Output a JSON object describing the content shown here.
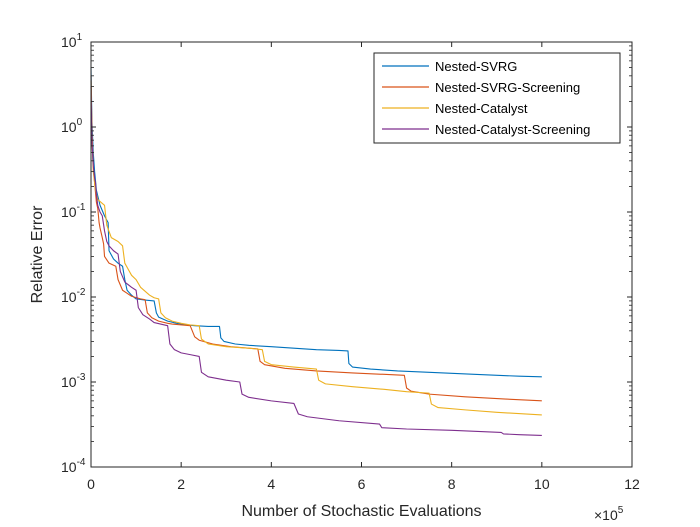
{
  "chart_data": {
    "type": "line",
    "xlabel": "Number of Stochastic Evaluations",
    "ylabel": "Relative Error",
    "x_multiplier_label": "×10",
    "x_multiplier_exponent": "5",
    "xlim": [
      0,
      12
    ],
    "ylim": [
      0.0001,
      10
    ],
    "yscale": "log",
    "xticks": [
      0,
      2,
      4,
      6,
      8,
      10,
      12
    ],
    "xtick_labels": [
      "0",
      "2",
      "4",
      "6",
      "8",
      "10",
      "12"
    ],
    "yticks": [
      0.0001,
      0.001,
      0.01,
      0.1,
      1,
      10
    ],
    "ytick_bases": [
      "10",
      "10",
      "10",
      "10",
      "10",
      "10"
    ],
    "ytick_exponents": [
      "-4",
      "-3",
      "-2",
      "-1",
      "0",
      "1"
    ],
    "legend_position": "top-right",
    "grid": false,
    "series": [
      {
        "name": "Nested-SVRG",
        "color": "#0072BD",
        "points": [
          [
            0,
            5.0
          ],
          [
            0.02,
            1.2
          ],
          [
            0.05,
            0.5
          ],
          [
            0.08,
            0.3
          ],
          [
            0.12,
            0.18
          ],
          [
            0.2,
            0.12
          ],
          [
            0.3,
            0.09
          ],
          [
            0.38,
            0.075
          ],
          [
            0.4,
            0.035
          ],
          [
            0.5,
            0.028
          ],
          [
            0.6,
            0.025
          ],
          [
            0.7,
            0.023
          ],
          [
            0.75,
            0.016
          ],
          [
            0.8,
            0.012
          ],
          [
            0.9,
            0.0105
          ],
          [
            1.0,
            0.0095
          ],
          [
            1.2,
            0.0092
          ],
          [
            1.4,
            0.009
          ],
          [
            1.45,
            0.0065
          ],
          [
            1.5,
            0.0058
          ],
          [
            1.7,
            0.0052
          ],
          [
            1.9,
            0.0049
          ],
          [
            2.1,
            0.0047
          ],
          [
            2.3,
            0.0046
          ],
          [
            2.6,
            0.0045
          ],
          [
            2.85,
            0.0045
          ],
          [
            2.88,
            0.0033
          ],
          [
            2.95,
            0.003
          ],
          [
            3.2,
            0.0028
          ],
          [
            3.5,
            0.0027
          ],
          [
            4.0,
            0.0026
          ],
          [
            4.5,
            0.0025
          ],
          [
            5.0,
            0.0024
          ],
          [
            5.5,
            0.00235
          ],
          [
            5.7,
            0.00232
          ],
          [
            5.72,
            0.00165
          ],
          [
            5.8,
            0.0015
          ],
          [
            6.2,
            0.00142
          ],
          [
            6.8,
            0.00135
          ],
          [
            7.5,
            0.0013
          ],
          [
            8.5,
            0.00123
          ],
          [
            9.5,
            0.00117
          ],
          [
            10.0,
            0.00115
          ]
        ]
      },
      {
        "name": "Nested-SVRG-Screening",
        "color": "#D95319",
        "points": [
          [
            0,
            4.0
          ],
          [
            0.02,
            0.9
          ],
          [
            0.05,
            0.35
          ],
          [
            0.08,
            0.22
          ],
          [
            0.12,
            0.13
          ],
          [
            0.15,
            0.11
          ],
          [
            0.18,
            0.075
          ],
          [
            0.2,
            0.065
          ],
          [
            0.25,
            0.05
          ],
          [
            0.28,
            0.042
          ],
          [
            0.3,
            0.03
          ],
          [
            0.4,
            0.025
          ],
          [
            0.55,
            0.023
          ],
          [
            0.6,
            0.016
          ],
          [
            0.7,
            0.012
          ],
          [
            0.9,
            0.0102
          ],
          [
            1.1,
            0.0095
          ],
          [
            1.2,
            0.0093
          ],
          [
            1.25,
            0.0065
          ],
          [
            1.35,
            0.0057
          ],
          [
            1.5,
            0.0052
          ],
          [
            1.7,
            0.0049
          ],
          [
            1.8,
            0.0048
          ],
          [
            2.2,
            0.0046
          ],
          [
            2.3,
            0.0034
          ],
          [
            2.4,
            0.0031
          ],
          [
            2.7,
            0.0028
          ],
          [
            3.1,
            0.0026
          ],
          [
            3.5,
            0.0025
          ],
          [
            3.7,
            0.00245
          ],
          [
            3.75,
            0.00175
          ],
          [
            3.85,
            0.0016
          ],
          [
            4.3,
            0.00145
          ],
          [
            5.0,
            0.00135
          ],
          [
            5.8,
            0.00128
          ],
          [
            6.5,
            0.00123
          ],
          [
            6.95,
            0.0012
          ],
          [
            7.0,
            0.00085
          ],
          [
            7.1,
            0.00078
          ],
          [
            7.5,
            0.00072
          ],
          [
            8.3,
            0.00067
          ],
          [
            9.2,
            0.00063
          ],
          [
            10.0,
            0.0006
          ]
        ]
      },
      {
        "name": "Nested-Catalyst",
        "color": "#EDB120",
        "points": [
          [
            0,
            3.5
          ],
          [
            0.02,
            0.8
          ],
          [
            0.05,
            0.3
          ],
          [
            0.1,
            0.18
          ],
          [
            0.15,
            0.14
          ],
          [
            0.3,
            0.12
          ],
          [
            0.35,
            0.07
          ],
          [
            0.45,
            0.05
          ],
          [
            0.6,
            0.045
          ],
          [
            0.7,
            0.04
          ],
          [
            0.75,
            0.025
          ],
          [
            0.9,
            0.018
          ],
          [
            1.0,
            0.016
          ],
          [
            1.1,
            0.013
          ],
          [
            1.3,
            0.0105
          ],
          [
            1.4,
            0.0098
          ],
          [
            1.5,
            0.0095
          ],
          [
            1.55,
            0.0065
          ],
          [
            1.65,
            0.0057
          ],
          [
            1.8,
            0.0052
          ],
          [
            2.0,
            0.0049
          ],
          [
            2.2,
            0.0047
          ],
          [
            2.4,
            0.0046
          ],
          [
            2.45,
            0.0032
          ],
          [
            2.6,
            0.0028
          ],
          [
            3.0,
            0.0026
          ],
          [
            3.5,
            0.0025
          ],
          [
            3.8,
            0.0024
          ],
          [
            3.85,
            0.00175
          ],
          [
            4.0,
            0.0016
          ],
          [
            4.5,
            0.0015
          ],
          [
            5.0,
            0.00142
          ],
          [
            5.05,
            0.00105
          ],
          [
            5.2,
            0.00095
          ],
          [
            5.8,
            0.00088
          ],
          [
            6.5,
            0.00082
          ],
          [
            7.0,
            0.00077
          ],
          [
            7.5,
            0.00074
          ],
          [
            7.55,
            0.00055
          ],
          [
            7.7,
            0.0005
          ],
          [
            8.3,
            0.00047
          ],
          [
            9.0,
            0.00044
          ],
          [
            10.0,
            0.00041
          ]
        ]
      },
      {
        "name": "Nested-Catalyst-Screening",
        "color": "#7E2F8E",
        "points": [
          [
            0,
            3.0
          ],
          [
            0.02,
            0.7
          ],
          [
            0.05,
            0.35
          ],
          [
            0.08,
            0.25
          ],
          [
            0.1,
            0.22
          ],
          [
            0.12,
            0.16
          ],
          [
            0.15,
            0.12
          ],
          [
            0.2,
            0.1
          ],
          [
            0.25,
            0.09
          ],
          [
            0.3,
            0.06
          ],
          [
            0.35,
            0.045
          ],
          [
            0.4,
            0.04
          ],
          [
            0.5,
            0.035
          ],
          [
            0.6,
            0.032
          ],
          [
            0.65,
            0.02
          ],
          [
            0.75,
            0.015
          ],
          [
            0.9,
            0.013
          ],
          [
            1.0,
            0.012
          ],
          [
            1.05,
            0.0075
          ],
          [
            1.15,
            0.0062
          ],
          [
            1.3,
            0.0055
          ],
          [
            1.4,
            0.005
          ],
          [
            1.7,
            0.0046
          ],
          [
            1.75,
            0.0028
          ],
          [
            1.85,
            0.0024
          ],
          [
            2.0,
            0.0022
          ],
          [
            2.2,
            0.0021
          ],
          [
            2.4,
            0.002
          ],
          [
            2.45,
            0.0013
          ],
          [
            2.6,
            0.00115
          ],
          [
            3.0,
            0.00105
          ],
          [
            3.3,
            0.001
          ],
          [
            3.35,
            0.00072
          ],
          [
            3.5,
            0.00066
          ],
          [
            4.0,
            0.0006
          ],
          [
            4.5,
            0.00056
          ],
          [
            4.6,
            0.00042
          ],
          [
            4.8,
            0.00039
          ],
          [
            5.5,
            0.00035
          ],
          [
            6.4,
            0.00032
          ],
          [
            6.45,
            0.00029
          ],
          [
            7.0,
            0.00028
          ],
          [
            8.0,
            0.00027
          ],
          [
            9.1,
            0.000255
          ],
          [
            9.15,
            0.000245
          ],
          [
            9.5,
            0.00024
          ],
          [
            10.0,
            0.000235
          ]
        ]
      }
    ]
  }
}
